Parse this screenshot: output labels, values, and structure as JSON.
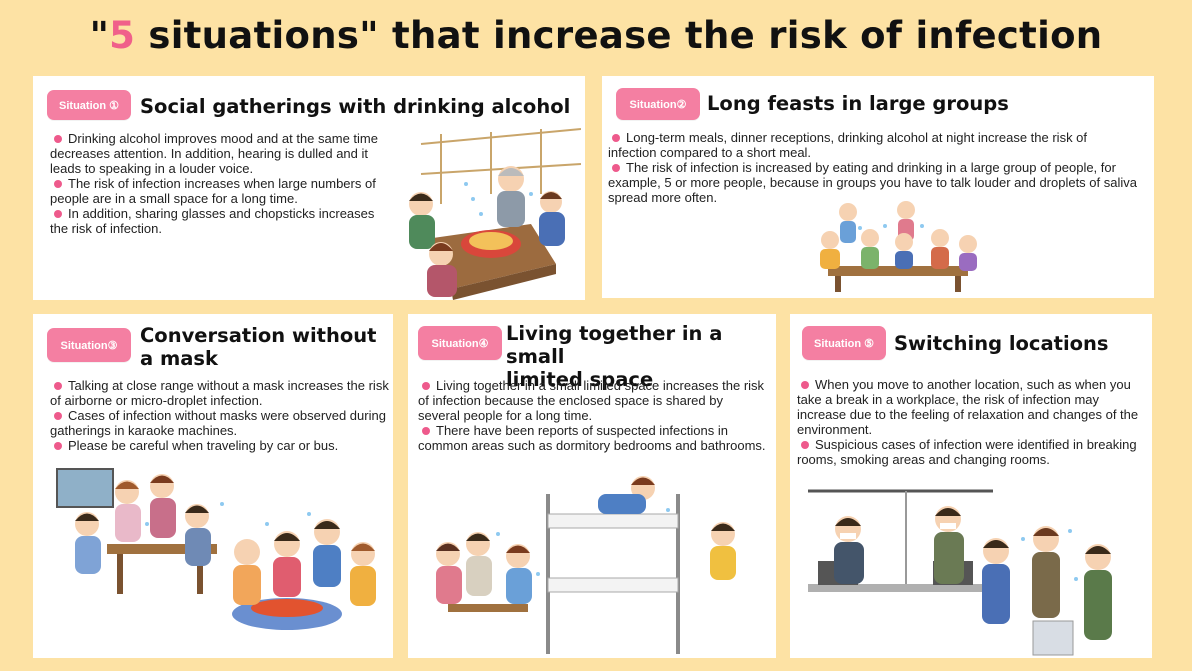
{
  "title": {
    "quote_open": "\"",
    "number": "5",
    "rest": " situations\" that increase the risk of infection"
  },
  "panels": [
    {
      "badge": "Situation ①",
      "heading": "Social gatherings with drinking alcohol",
      "bullets": [
        "Drinking alcohol improves mood and at the same time decreases attention. In addition, hearing is dulled and it leads to speaking in a louder voice.",
        "The risk of infection increases when large numbers of people are in a small space for a long time.",
        "In addition, sharing glasses and chopsticks increases the risk of infection."
      ]
    },
    {
      "badge": "Situation②",
      "heading": "Long feasts in large groups",
      "bullets": [
        "Long-term meals, dinner receptions, drinking alcohol at night increase the risk of infection compared to a short meal.",
        "The risk of infection is increased by eating and drinking in a large group of people, for example, 5 or more people, because in groups you have to talk louder and droplets of saliva spread more often."
      ]
    },
    {
      "badge": "Situation③",
      "heading_lines": [
        "Conversation without",
        "a mask"
      ],
      "bullets": [
        "Talking at close range without a mask increases the risk of airborne or micro-droplet infection.",
        "Cases of infection without masks were observed during gatherings in karaoke machines.",
        "Please be careful when traveling by car or bus."
      ]
    },
    {
      "badge": "Situation④",
      "heading_lines": [
        "Living together in a small",
        "limited space"
      ],
      "bullets": [
        "Living together in a small limited space increases the risk of infection because the enclosed space is shared by several people for a long time.",
        "There have been reports of suspected infections in common areas such as dormitory bedrooms and bathrooms."
      ]
    },
    {
      "badge": "Situation ⑤",
      "heading": "Switching locations",
      "bullets": [
        "When you move to another location, such as when you take a break in a workplace, the risk of infection may increase due to the feeling of relaxation and changes of the environment.",
        "Suspicious cases of infection were identified in breaking rooms, smoking areas and changing rooms."
      ]
    }
  ],
  "colors": {
    "background": "#fde2a4",
    "badge": "#f47fa2",
    "bullet": "#ee5a8c",
    "title_number": "#f0608a"
  }
}
